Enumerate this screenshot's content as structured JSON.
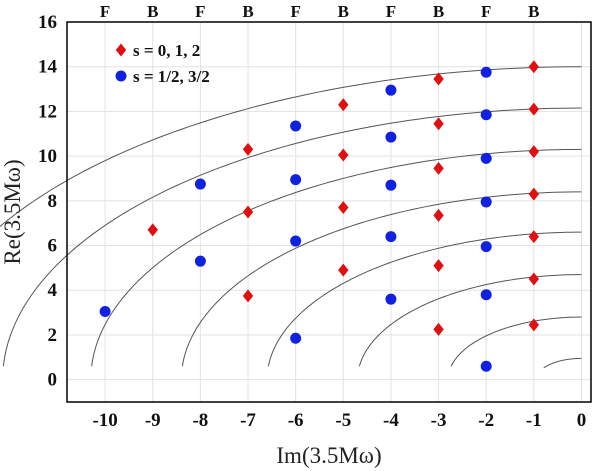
{
  "chart_data": {
    "type": "scatter",
    "title": "",
    "xlabel": "Im(3.5Mω)",
    "ylabel": "Re(3.5Mω)",
    "xlim": [
      -10.8,
      0.2
    ],
    "ylim": [
      -1,
      16
    ],
    "x_ticks": [
      -10,
      -9,
      -8,
      -7,
      -6,
      -5,
      -4,
      -3,
      -2,
      -1,
      0
    ],
    "y_ticks": [
      0,
      2,
      4,
      6,
      8,
      10,
      12,
      14,
      16
    ],
    "grid": true,
    "legend_position": "top-left",
    "top_labels": [
      {
        "x": -10,
        "label": "F"
      },
      {
        "x": -9,
        "label": "B"
      },
      {
        "x": -8,
        "label": "F"
      },
      {
        "x": -7,
        "label": "B"
      },
      {
        "x": -6,
        "label": "F"
      },
      {
        "x": -5,
        "label": "B"
      },
      {
        "x": -4,
        "label": "F"
      },
      {
        "x": -3,
        "label": "B"
      },
      {
        "x": -2,
        "label": "F"
      },
      {
        "x": -1,
        "label": "B"
      }
    ],
    "curves": [
      {
        "radius": 14.0
      },
      {
        "radius": 12.15
      },
      {
        "radius": 10.3
      },
      {
        "radius": 8.4
      },
      {
        "radius": 6.6
      },
      {
        "radius": 4.7
      },
      {
        "radius": 2.8
      },
      {
        "radius": 0.95
      }
    ],
    "series": [
      {
        "name": "s = 0, 1, 2",
        "marker": "diamond",
        "color": "#e01010",
        "points": [
          [
            -1,
            14.0
          ],
          [
            -1,
            12.1
          ],
          [
            -1,
            10.2
          ],
          [
            -1,
            8.3
          ],
          [
            -1,
            6.4
          ],
          [
            -1,
            4.5
          ],
          [
            -1,
            2.45
          ],
          [
            -3,
            13.45
          ],
          [
            -3,
            11.45
          ],
          [
            -3,
            9.45
          ],
          [
            -3,
            7.35
          ],
          [
            -3,
            5.1
          ],
          [
            -3,
            2.25
          ],
          [
            -5,
            12.3
          ],
          [
            -5,
            10.05
          ],
          [
            -5,
            7.7
          ],
          [
            -5,
            4.9
          ],
          [
            -7,
            10.3
          ],
          [
            -7,
            7.5
          ],
          [
            -7,
            3.75
          ],
          [
            -9,
            6.7
          ]
        ]
      },
      {
        "name": "s = 1/2, 3/2",
        "marker": "circle",
        "color": "#1022e0",
        "points": [
          [
            -2,
            13.75
          ],
          [
            -2,
            11.85
          ],
          [
            -2,
            9.9
          ],
          [
            -2,
            7.95
          ],
          [
            -2,
            5.95
          ],
          [
            -2,
            3.8
          ],
          [
            -2,
            0.6
          ],
          [
            -4,
            12.95
          ],
          [
            -4,
            10.85
          ],
          [
            -4,
            8.7
          ],
          [
            -4,
            6.4
          ],
          [
            -4,
            3.6
          ],
          [
            -6,
            11.35
          ],
          [
            -6,
            8.95
          ],
          [
            -6,
            6.2
          ],
          [
            -6,
            1.85
          ],
          [
            -8,
            8.75
          ],
          [
            -8,
            5.3
          ],
          [
            -10,
            3.05
          ]
        ]
      }
    ]
  }
}
